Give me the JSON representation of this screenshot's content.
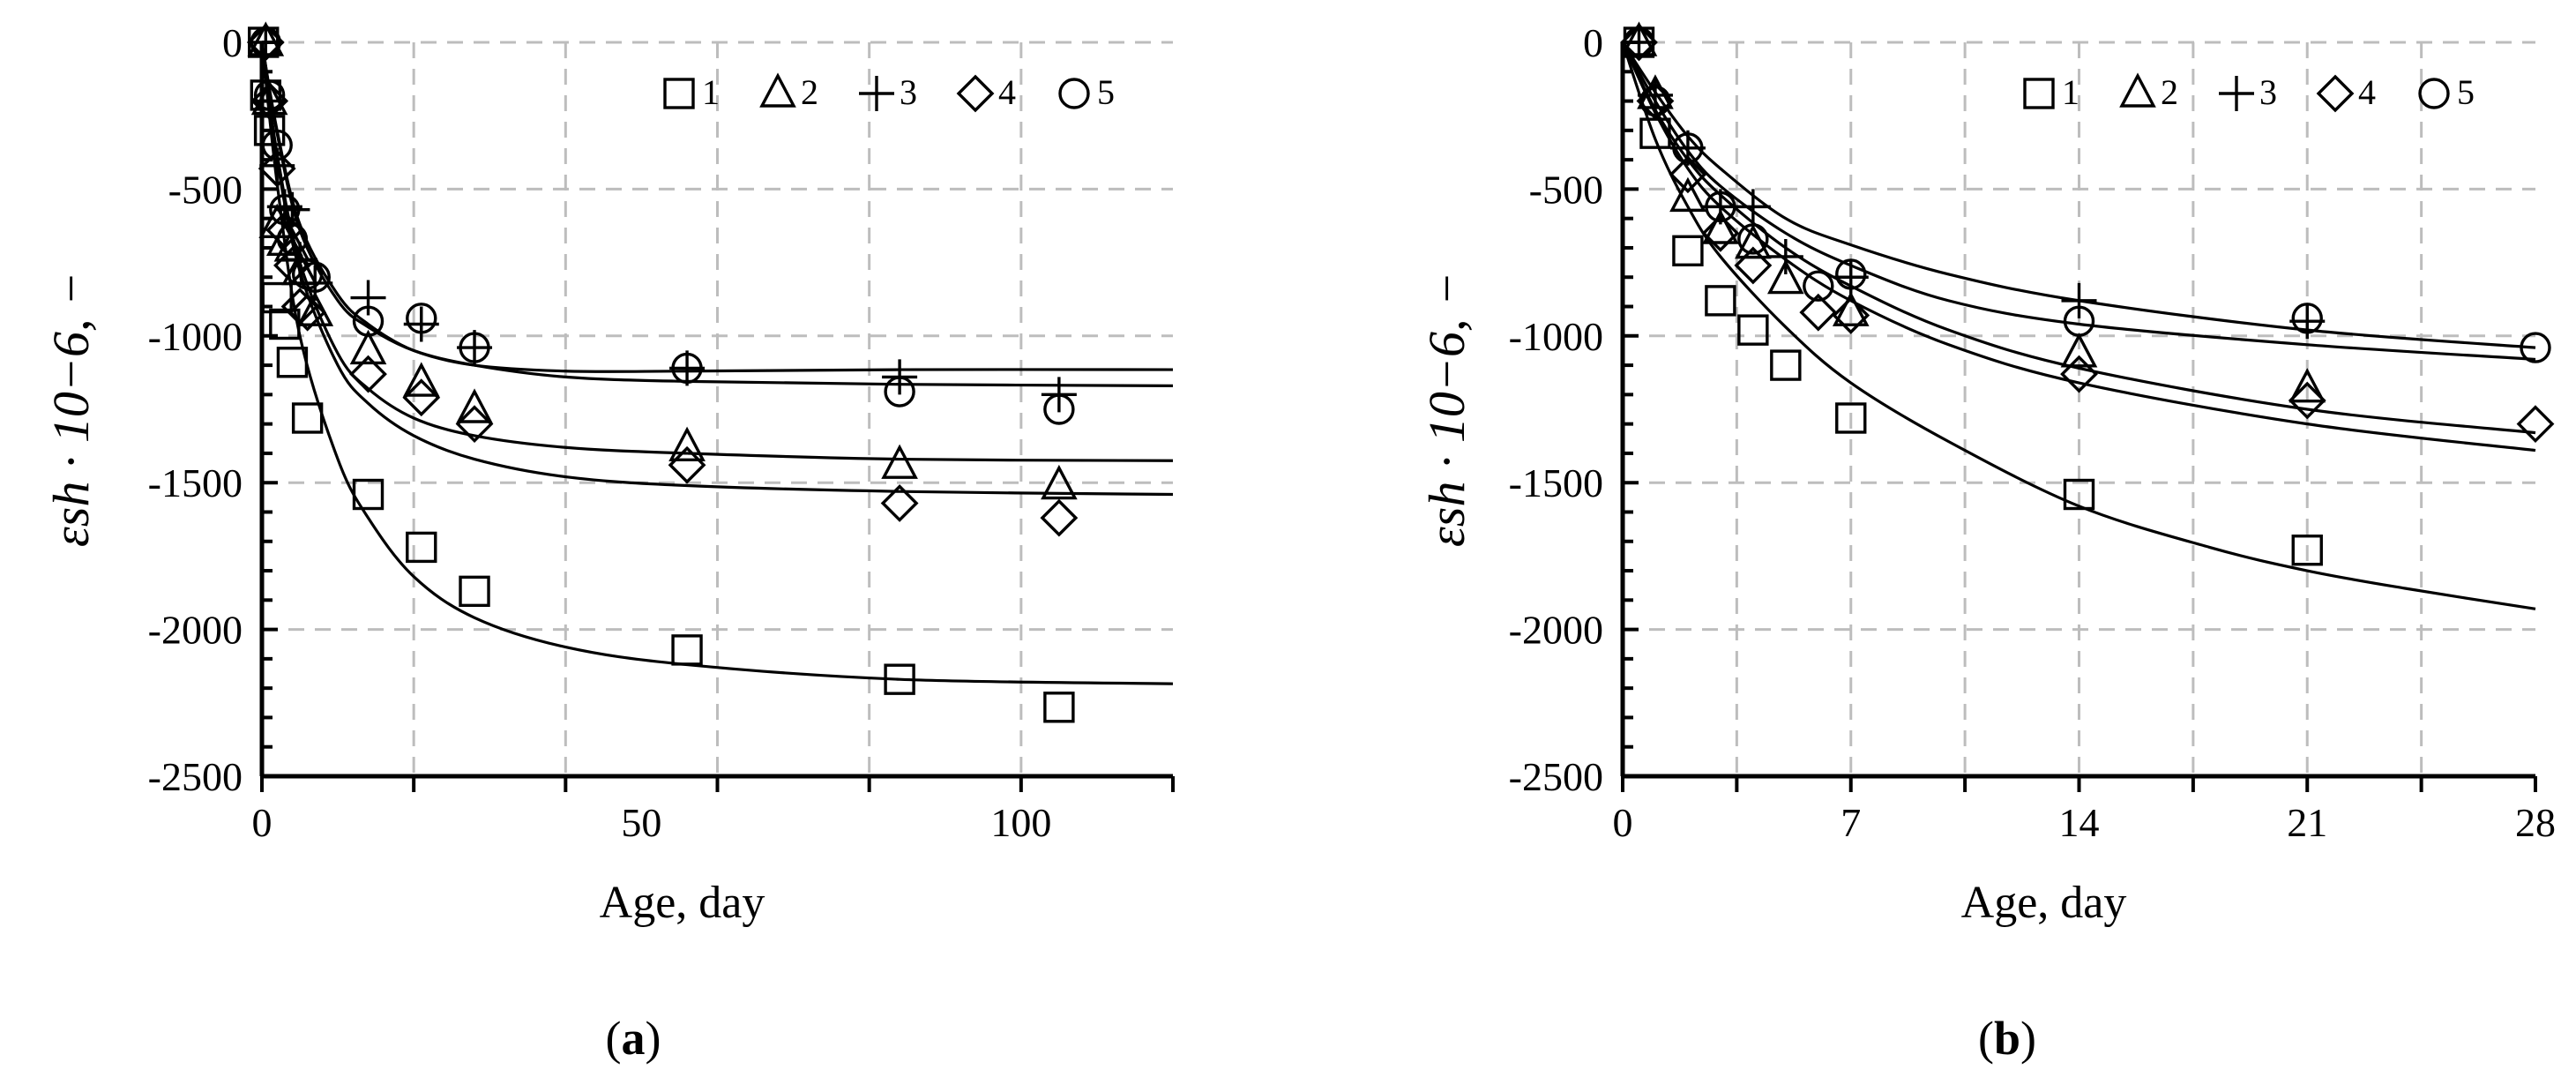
{
  "figure": {
    "panels": [
      {
        "id": "a",
        "panel_label": "(a)",
        "panel_label_bold": "a"
      },
      {
        "id": "b",
        "panel_label": "(b)",
        "panel_label_bold": "b"
      }
    ]
  },
  "chart_data": [
    {
      "type": "scatter",
      "title": "",
      "xlabel": "Age, day",
      "ylabel": "εsh · 10−6, −",
      "xlim": [
        0,
        120
      ],
      "ylim": [
        -2500,
        0
      ],
      "x_ticks": [
        0,
        50,
        100
      ],
      "y_ticks": [
        0,
        -500,
        -1000,
        -1500,
        -2000,
        -2500
      ],
      "grid": true,
      "legend_position": "top-right",
      "series": [
        {
          "name": "1",
          "marker": "square",
          "points": [
            [
              0.2,
              0
            ],
            [
              0.5,
              -180
            ],
            [
              1,
              -300
            ],
            [
              2,
              -870
            ],
            [
              3,
              -960
            ],
            [
              4,
              -1090
            ],
            [
              6,
              -1280
            ],
            [
              14,
              -1540
            ],
            [
              21,
              -1720
            ],
            [
              28,
              -1870
            ],
            [
              56,
              -2070
            ],
            [
              84,
              -2170
            ],
            [
              105,
              -2265
            ]
          ],
          "fit": [
            [
              0,
              0
            ],
            [
              2,
              -480
            ],
            [
              5,
              -1000
            ],
            [
              10,
              -1420
            ],
            [
              14,
              -1620
            ],
            [
              20,
              -1820
            ],
            [
              28,
              -1960
            ],
            [
              40,
              -2060
            ],
            [
              56,
              -2120
            ],
            [
              84,
              -2170
            ],
            [
              120,
              -2185
            ]
          ]
        },
        {
          "name": "2",
          "marker": "triangle",
          "points": [
            [
              0.5,
              0
            ],
            [
              1,
              -200
            ],
            [
              2,
              -620
            ],
            [
              3,
              -680
            ],
            [
              4,
              -700
            ],
            [
              5,
              -780
            ],
            [
              7,
              -920
            ],
            [
              14,
              -1050
            ],
            [
              21,
              -1160
            ],
            [
              28,
              -1250
            ],
            [
              56,
              -1380
            ],
            [
              84,
              -1440
            ],
            [
              105,
              -1510
            ]
          ],
          "fit": [
            [
              0,
              0
            ],
            [
              2,
              -380
            ],
            [
              5,
              -750
            ],
            [
              10,
              -1060
            ],
            [
              14,
              -1180
            ],
            [
              20,
              -1280
            ],
            [
              28,
              -1340
            ],
            [
              40,
              -1380
            ],
            [
              56,
              -1400
            ],
            [
              84,
              -1420
            ],
            [
              120,
              -1425
            ]
          ]
        },
        {
          "name": "3",
          "marker": "plus",
          "points": [
            [
              0.5,
              0
            ],
            [
              1,
              -200
            ],
            [
              2,
              -420
            ],
            [
              3,
              -560
            ],
            [
              4,
              -570
            ],
            [
              5,
              -740
            ],
            [
              7,
              -820
            ],
            [
              14,
              -870
            ],
            [
              21,
              -960
            ],
            [
              28,
              -1040
            ],
            [
              56,
              -1110
            ],
            [
              84,
              -1140
            ],
            [
              105,
              -1200
            ]
          ],
          "fit": [
            [
              0,
              0
            ],
            [
              2,
              -300
            ],
            [
              5,
              -620
            ],
            [
              10,
              -860
            ],
            [
              14,
              -960
            ],
            [
              20,
              -1050
            ],
            [
              28,
              -1100
            ],
            [
              40,
              -1120
            ],
            [
              56,
              -1120
            ],
            [
              84,
              -1115
            ],
            [
              120,
              -1115
            ]
          ]
        },
        {
          "name": "4",
          "marker": "diamond",
          "points": [
            [
              0.5,
              0
            ],
            [
              1,
              -200
            ],
            [
              2,
              -430
            ],
            [
              3,
              -640
            ],
            [
              4,
              -760
            ],
            [
              5,
              -900
            ],
            [
              6,
              -920
            ],
            [
              14,
              -1130
            ],
            [
              21,
              -1210
            ],
            [
              28,
              -1300
            ],
            [
              56,
              -1440
            ],
            [
              84,
              -1570
            ],
            [
              105,
              -1620
            ]
          ],
          "fit": [
            [
              0,
              0
            ],
            [
              2,
              -400
            ],
            [
              5,
              -780
            ],
            [
              10,
              -1100
            ],
            [
              14,
              -1230
            ],
            [
              20,
              -1340
            ],
            [
              28,
              -1420
            ],
            [
              40,
              -1480
            ],
            [
              56,
              -1510
            ],
            [
              84,
              -1530
            ],
            [
              120,
              -1540
            ]
          ]
        },
        {
          "name": "5",
          "marker": "circle",
          "points": [
            [
              0.5,
              0
            ],
            [
              1,
              -180
            ],
            [
              2,
              -350
            ],
            [
              3,
              -570
            ],
            [
              4,
              -670
            ],
            [
              6,
              -790
            ],
            [
              7,
              -800
            ],
            [
              14,
              -950
            ],
            [
              21,
              -940
            ],
            [
              28,
              -1040
            ],
            [
              56,
              -1110
            ],
            [
              84,
              -1190
            ],
            [
              105,
              -1250
            ]
          ],
          "fit": [
            [
              0,
              0
            ],
            [
              2,
              -310
            ],
            [
              5,
              -640
            ],
            [
              10,
              -880
            ],
            [
              14,
              -970
            ],
            [
              20,
              -1050
            ],
            [
              28,
              -1100
            ],
            [
              40,
              -1140
            ],
            [
              56,
              -1155
            ],
            [
              84,
              -1165
            ],
            [
              120,
              -1170
            ]
          ]
        }
      ]
    },
    {
      "type": "scatter",
      "title": "",
      "xlabel": "Age, day",
      "ylabel": "εsh · 10−6, −",
      "xlim": [
        0,
        28
      ],
      "ylim": [
        -2500,
        0
      ],
      "x_ticks": [
        0,
        7,
        14,
        21,
        28
      ],
      "y_ticks": [
        0,
        -500,
        -1000,
        -1500,
        -2000,
        -2500
      ],
      "grid": true,
      "legend_position": "top-right",
      "series": [
        {
          "name": "1",
          "marker": "square",
          "points": [
            [
              0.5,
              0
            ],
            [
              1,
              -310
            ],
            [
              2,
              -710
            ],
            [
              3,
              -880
            ],
            [
              4,
              -980
            ],
            [
              5,
              -1100
            ],
            [
              7,
              -1280
            ],
            [
              14,
              -1540
            ],
            [
              21,
              -1730
            ]
          ],
          "fit": [
            [
              0,
              0
            ],
            [
              1,
              -330
            ],
            [
              2,
              -560
            ],
            [
              3,
              -730
            ],
            [
              5,
              -970
            ],
            [
              7,
              -1160
            ],
            [
              10,
              -1360
            ],
            [
              14,
              -1580
            ],
            [
              18,
              -1720
            ],
            [
              21,
              -1800
            ],
            [
              24,
              -1860
            ],
            [
              28,
              -1930
            ]
          ]
        },
        {
          "name": "2",
          "marker": "triangle",
          "points": [
            [
              0.5,
              0
            ],
            [
              1,
              -180
            ],
            [
              2,
              -530
            ],
            [
              3,
              -640
            ],
            [
              4,
              -690
            ],
            [
              5,
              -810
            ],
            [
              7,
              -920
            ],
            [
              14,
              -1060
            ],
            [
              21,
              -1180
            ]
          ],
          "fit": [
            [
              0,
              0
            ],
            [
              1,
              -230
            ],
            [
              2,
              -400
            ],
            [
              3,
              -520
            ],
            [
              5,
              -700
            ],
            [
              7,
              -830
            ],
            [
              10,
              -980
            ],
            [
              14,
              -1110
            ],
            [
              21,
              -1250
            ],
            [
              28,
              -1330
            ]
          ]
        },
        {
          "name": "3",
          "marker": "plus",
          "points": [
            [
              0.5,
              0
            ],
            [
              1,
              -180
            ],
            [
              2,
              -360
            ],
            [
              3,
              -560
            ],
            [
              4,
              -560
            ],
            [
              5,
              -730
            ],
            [
              7,
              -800
            ],
            [
              14,
              -880
            ],
            [
              21,
              -950
            ]
          ],
          "fit": [
            [
              0,
              0
            ],
            [
              1,
              -170
            ],
            [
              2,
              -320
            ],
            [
              3,
              -430
            ],
            [
              5,
              -600
            ],
            [
              7,
              -690
            ],
            [
              10,
              -790
            ],
            [
              14,
              -880
            ],
            [
              21,
              -980
            ],
            [
              28,
              -1040
            ]
          ]
        },
        {
          "name": "4",
          "marker": "diamond",
          "points": [
            [
              0.5,
              0
            ],
            [
              1,
              -200
            ],
            [
              2,
              -450
            ],
            [
              3,
              -650
            ],
            [
              4,
              -760
            ],
            [
              6,
              -920
            ],
            [
              7,
              -930
            ],
            [
              14,
              -1130
            ],
            [
              21,
              -1220
            ],
            [
              28,
              -1300
            ]
          ],
          "fit": [
            [
              0,
              0
            ],
            [
              1,
              -240
            ],
            [
              2,
              -430
            ],
            [
              3,
              -560
            ],
            [
              5,
              -740
            ],
            [
              7,
              -880
            ],
            [
              10,
              -1030
            ],
            [
              14,
              -1160
            ],
            [
              21,
              -1300
            ],
            [
              28,
              -1390
            ]
          ]
        },
        {
          "name": "5",
          "marker": "circle",
          "points": [
            [
              0.5,
              0
            ],
            [
              1,
              -200
            ],
            [
              2,
              -360
            ],
            [
              3,
              -560
            ],
            [
              4,
              -670
            ],
            [
              6,
              -830
            ],
            [
              7,
              -790
            ],
            [
              14,
              -950
            ],
            [
              21,
              -940
            ],
            [
              28,
              -1040
            ]
          ],
          "fit": [
            [
              0,
              0
            ],
            [
              1,
              -200
            ],
            [
              2,
              -370
            ],
            [
              3,
              -490
            ],
            [
              5,
              -650
            ],
            [
              7,
              -760
            ],
            [
              10,
              -880
            ],
            [
              14,
              -960
            ],
            [
              21,
              -1030
            ],
            [
              28,
              -1080
            ]
          ]
        }
      ]
    }
  ]
}
